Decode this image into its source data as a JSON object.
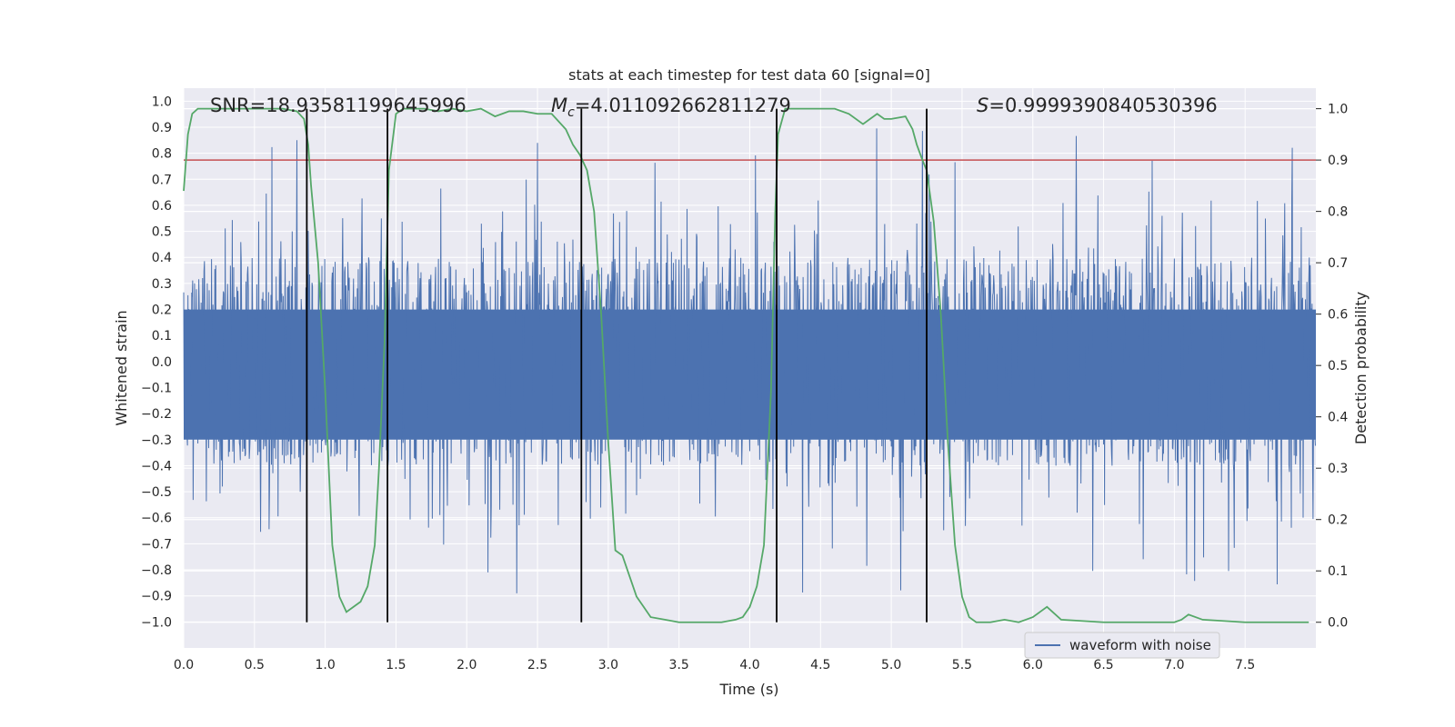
{
  "chart_data": {
    "type": "line",
    "title": "stats at each timestep for test data 60 [signal=0]",
    "xlabel": "Time (s)",
    "ylabel": "Whitened strain",
    "y2label": "Detection probability",
    "xlim": [
      0.0,
      8.0
    ],
    "ylim": [
      -1.1,
      1.05
    ],
    "y2lim": [
      -0.05,
      1.04
    ],
    "x_ticks": [
      "0.0",
      "0.5",
      "1.0",
      "1.5",
      "2.0",
      "2.5",
      "3.0",
      "3.5",
      "4.0",
      "4.5",
      "5.0",
      "5.5",
      "6.0",
      "6.5",
      "7.0",
      "7.5"
    ],
    "y_ticks": [
      "1.0",
      "0.9",
      "0.8",
      "0.7",
      "0.6",
      "0.5",
      "0.4",
      "0.3",
      "0.2",
      "0.1",
      "0.0",
      "-0.1",
      "-0.2",
      "-0.3",
      "-0.4",
      "-0.5",
      "-0.6",
      "-0.7",
      "-0.8",
      "-0.9",
      "-1.0"
    ],
    "y2_ticks": [
      "1.0",
      "0.9",
      "0.8",
      "0.7",
      "0.6",
      "0.5",
      "0.4",
      "0.3",
      "0.2",
      "0.1",
      "0.0"
    ],
    "annotations": {
      "snr": "SNR=18.93581199645996",
      "mc_symbol": "M",
      "mc_sub": "c",
      "mc_value": "=4.011092662811279",
      "s_symbol": "S",
      "s_value": "=0.9999390840530396"
    },
    "legend": {
      "label": "waveform with noise",
      "position": "lower-right"
    },
    "threshold_prob": 0.9,
    "vertical_markers_s": [
      0.87,
      1.44,
      2.81,
      4.19,
      5.25
    ],
    "waveform": {
      "name": "waveform with noise",
      "duration_s": 8.0,
      "envelope_bulk": 0.4,
      "peak_range": [
        -0.97,
        0.95
      ]
    },
    "series": [
      {
        "name": "detection probability",
        "axis": "y2",
        "x": [
          0.0,
          0.03,
          0.06,
          0.1,
          0.2,
          0.3,
          0.4,
          0.5,
          0.6,
          0.7,
          0.8,
          0.85,
          0.88,
          0.9,
          0.95,
          1.0,
          1.05,
          1.1,
          1.15,
          1.25,
          1.3,
          1.35,
          1.38,
          1.42,
          1.45,
          1.5,
          1.55,
          1.6,
          1.7,
          1.8,
          1.9,
          2.0,
          2.1,
          2.2,
          2.3,
          2.4,
          2.5,
          2.6,
          2.7,
          2.75,
          2.8,
          2.85,
          2.9,
          2.95,
          3.0,
          3.05,
          3.1,
          3.2,
          3.25,
          3.3,
          3.4,
          3.5,
          3.6,
          3.7,
          3.8,
          3.9,
          3.95,
          4.0,
          4.05,
          4.1,
          4.15,
          4.18,
          4.2,
          4.25,
          4.3,
          4.4,
          4.5,
          4.6,
          4.7,
          4.8,
          4.85,
          4.9,
          4.95,
          5.0,
          5.1,
          5.15,
          5.18,
          5.22,
          5.25,
          5.3,
          5.35,
          5.4,
          5.45,
          5.5,
          5.55,
          5.6,
          5.7,
          5.8,
          5.9,
          5.95,
          6.0,
          6.05,
          6.1,
          6.2,
          6.5,
          6.8,
          6.95,
          7.0,
          7.05,
          7.1,
          7.2,
          7.5,
          7.8,
          7.95
        ],
        "values": [
          0.84,
          0.95,
          0.99,
          1.0,
          1.0,
          1.0,
          1.0,
          1.0,
          1.0,
          1.0,
          0.995,
          0.98,
          0.93,
          0.85,
          0.7,
          0.45,
          0.15,
          0.05,
          0.02,
          0.04,
          0.07,
          0.15,
          0.3,
          0.55,
          0.88,
          0.99,
          1.0,
          1.0,
          1.0,
          0.995,
          1.0,
          0.995,
          1.0,
          0.985,
          0.995,
          0.995,
          0.99,
          0.99,
          0.96,
          0.93,
          0.91,
          0.88,
          0.8,
          0.6,
          0.35,
          0.14,
          0.13,
          0.05,
          0.03,
          0.01,
          0.005,
          0.0,
          0.0,
          0.0,
          0.0,
          0.005,
          0.01,
          0.03,
          0.07,
          0.15,
          0.45,
          0.8,
          0.95,
          1.0,
          1.0,
          1.0,
          1.0,
          1.0,
          0.99,
          0.97,
          0.98,
          0.99,
          0.98,
          0.98,
          0.985,
          0.96,
          0.93,
          0.9,
          0.88,
          0.78,
          0.6,
          0.35,
          0.15,
          0.05,
          0.01,
          0.0,
          0.0,
          0.005,
          0.0,
          0.005,
          0.01,
          0.02,
          0.03,
          0.005,
          0.0,
          0.0,
          0.0,
          0.0,
          0.005,
          0.015,
          0.005,
          0.0,
          0.0,
          0.0
        ],
        "color": "#55a868"
      }
    ],
    "colors": {
      "plot_bg": "#eaeaf2",
      "grid": "#ffffff",
      "waveform": "#4c72b0",
      "probability": "#55a868",
      "threshold": "#c44e52",
      "marker": "#000000"
    }
  }
}
